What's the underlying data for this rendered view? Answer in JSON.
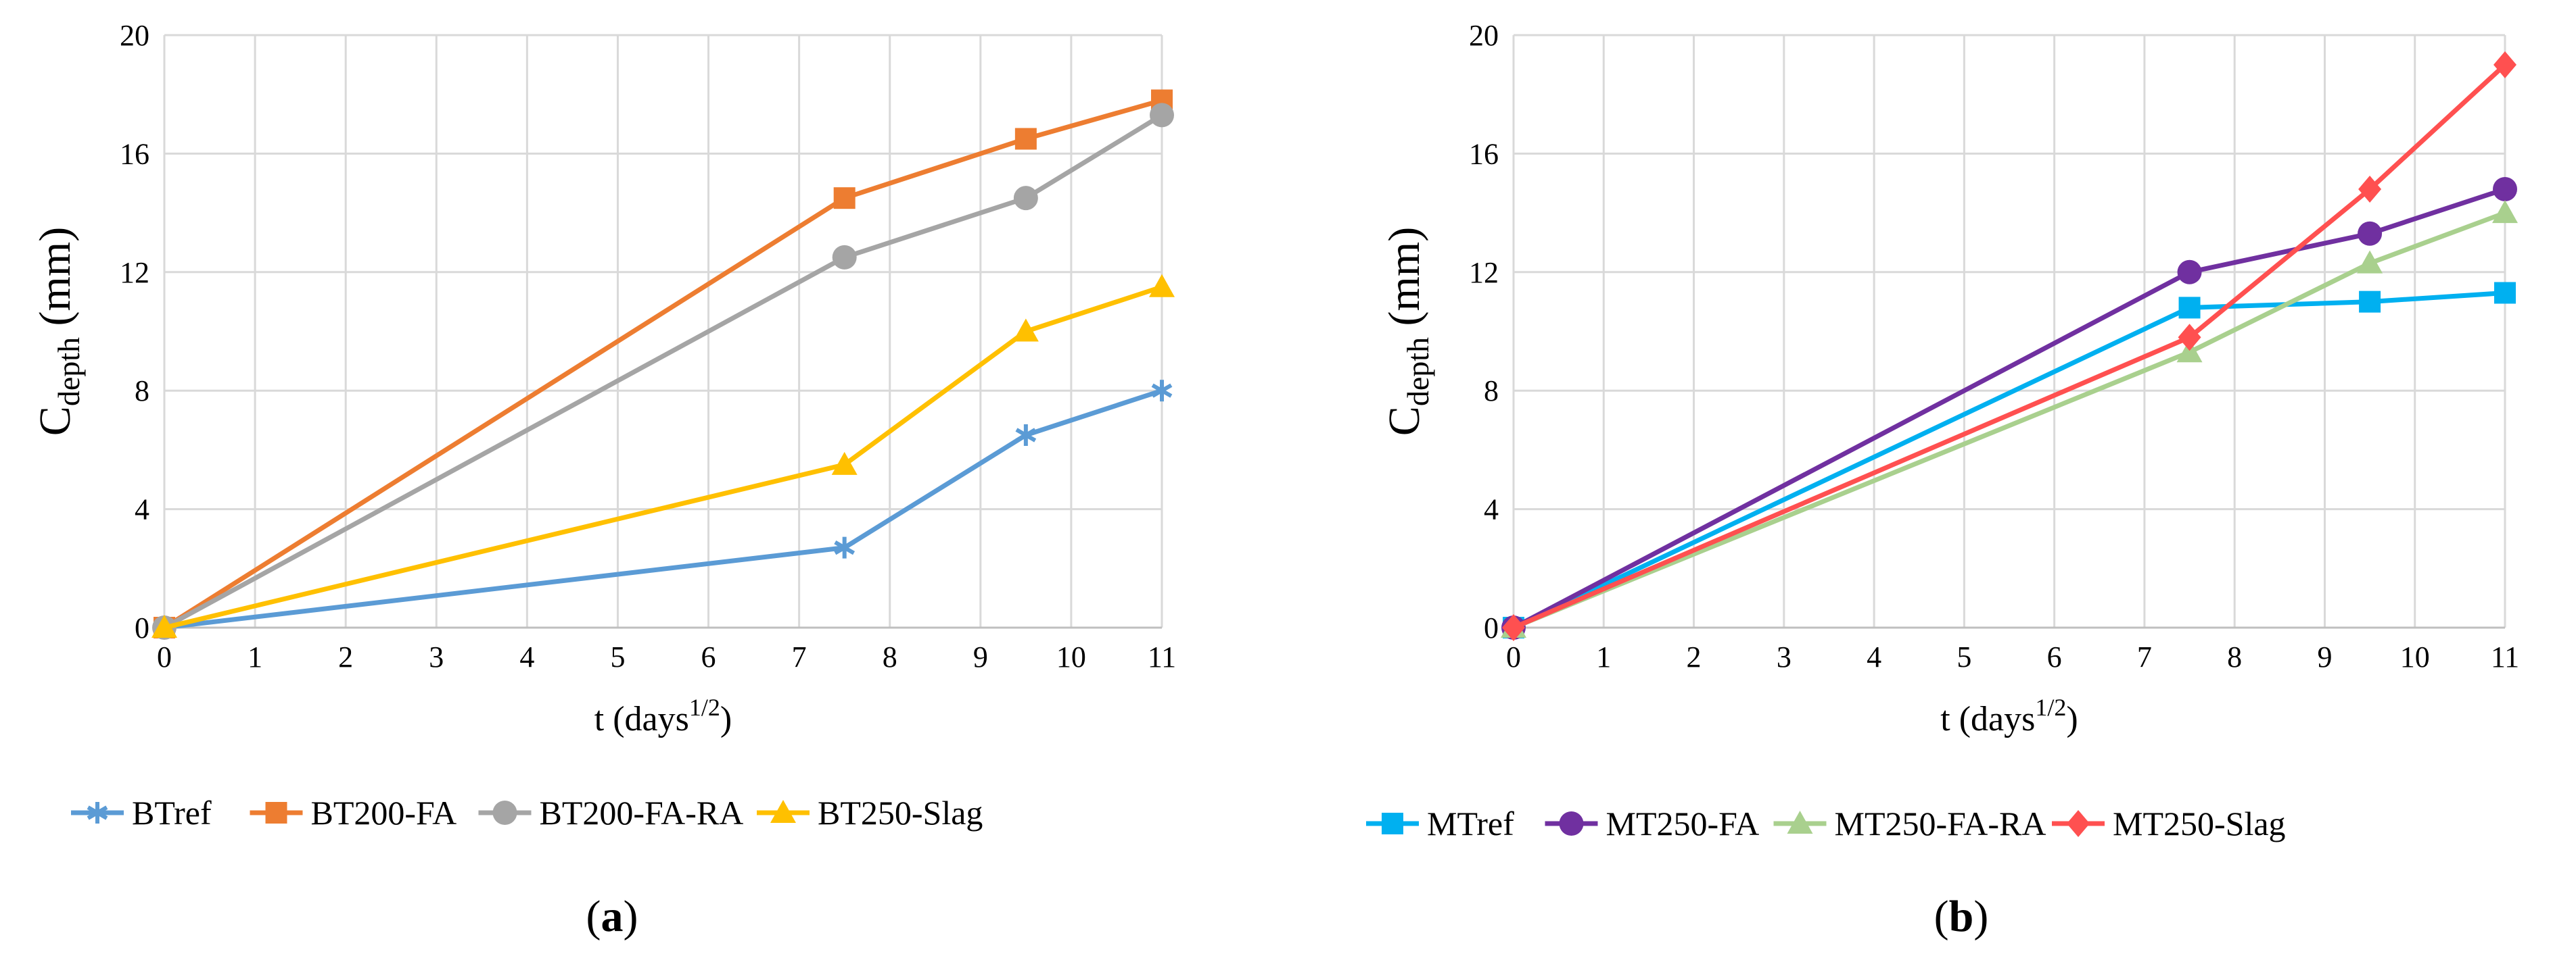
{
  "chart_data": [
    {
      "type": "line",
      "panel_label": "a",
      "xlabel": {
        "main": "t (days",
        "sup": "1/2",
        "close": ")"
      },
      "ylabel": {
        "main": "C",
        "sub": "depth",
        "unit": " (mm)"
      },
      "xlim": [
        0,
        11
      ],
      "ylim": [
        0,
        20
      ],
      "xticks": [
        "0",
        "1",
        "2",
        "3",
        "4",
        "5",
        "6",
        "7",
        "8",
        "9",
        "10",
        "11"
      ],
      "yticks": [
        "0",
        "4",
        "8",
        "12",
        "16",
        "20"
      ],
      "grid": true,
      "legend_position": "bottom",
      "series": [
        {
          "name": "BTref",
          "color": "#5B9BD5",
          "marker": "star",
          "x": [
            0,
            7.5,
            9.5,
            11
          ],
          "y": [
            0,
            2.7,
            6.5,
            8
          ]
        },
        {
          "name": "BT200-FA",
          "color": "#ED7D31",
          "marker": "square",
          "x": [
            0,
            7.5,
            9.5,
            11
          ],
          "y": [
            0,
            14.5,
            16.5,
            17.8
          ]
        },
        {
          "name": "BT200-FA-RA",
          "color": "#A5A5A5",
          "marker": "circle",
          "x": [
            0,
            7.5,
            9.5,
            11
          ],
          "y": [
            0,
            12.5,
            14.5,
            17.3
          ]
        },
        {
          "name": "BT250-Slag",
          "color": "#FFC000",
          "marker": "triangle",
          "x": [
            0,
            7.5,
            9.5,
            11
          ],
          "y": [
            0,
            5.5,
            10,
            11.5
          ]
        }
      ]
    },
    {
      "type": "line",
      "panel_label": "b",
      "xlabel": {
        "main": "t (days",
        "sup": "1/2",
        "close": ")"
      },
      "ylabel": {
        "main": "C",
        "sub": "depth",
        "unit": " (mm)"
      },
      "xlim": [
        0,
        11
      ],
      "ylim": [
        0,
        20
      ],
      "xticks": [
        "0",
        "1",
        "2",
        "3",
        "4",
        "5",
        "6",
        "7",
        "8",
        "9",
        "10",
        "11"
      ],
      "yticks": [
        "0",
        "4",
        "8",
        "12",
        "16",
        "20"
      ],
      "grid": true,
      "legend_position": "bottom",
      "series": [
        {
          "name": "MTref",
          "color": "#00B0F0",
          "marker": "square",
          "x": [
            0,
            7.5,
            9.5,
            11
          ],
          "y": [
            0,
            10.8,
            11,
            11.3
          ]
        },
        {
          "name": "MT250-FA",
          "color": "#7030A0",
          "marker": "circle",
          "x": [
            0,
            7.5,
            9.5,
            11
          ],
          "y": [
            0,
            12,
            13.3,
            14.8
          ]
        },
        {
          "name": "MT250-FA-RA",
          "color": "#A9D08E",
          "marker": "triangle",
          "x": [
            0,
            7.5,
            9.5,
            11
          ],
          "y": [
            0,
            9.3,
            12.3,
            14
          ]
        },
        {
          "name": "MT250-Slag",
          "color": "#FF5050",
          "marker": "diamond",
          "x": [
            0,
            7.5,
            9.5,
            11
          ],
          "y": [
            0,
            9.8,
            14.8,
            19
          ]
        }
      ]
    }
  ]
}
